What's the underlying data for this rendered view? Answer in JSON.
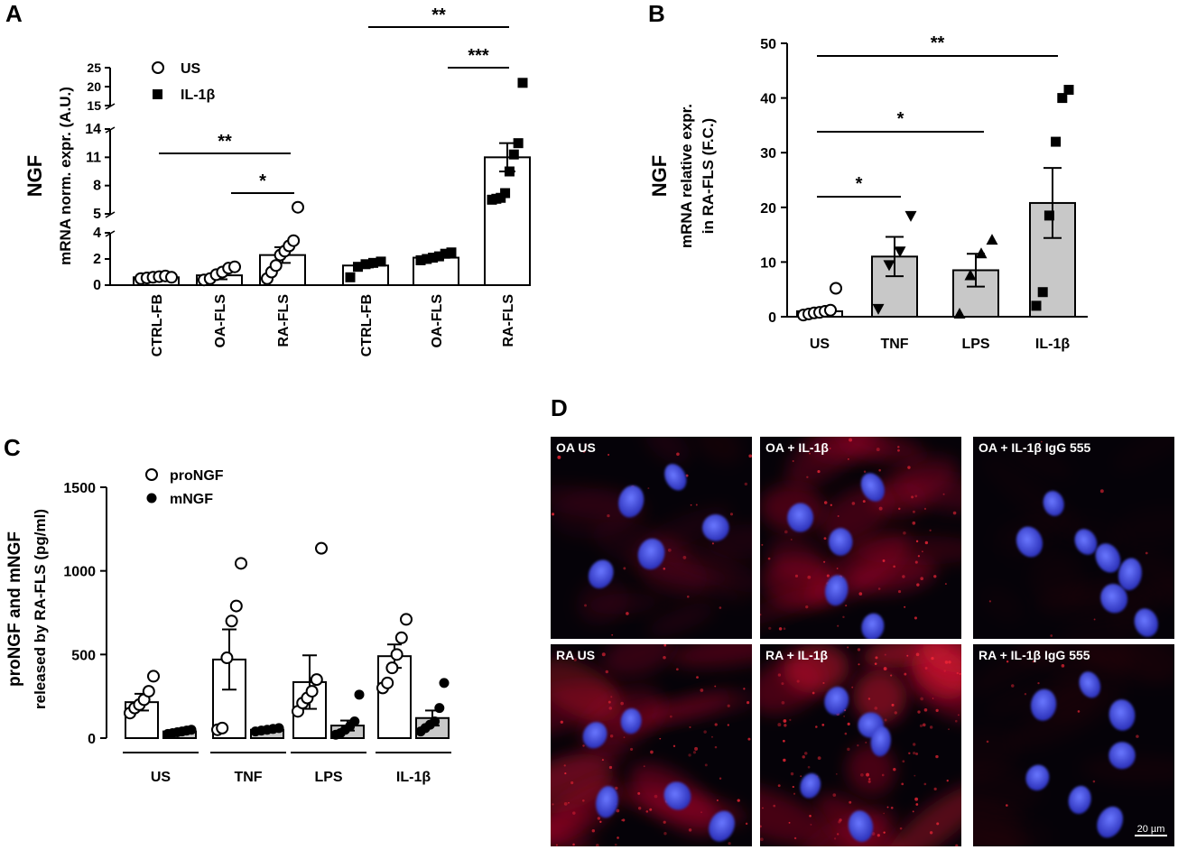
{
  "panels": [
    "A",
    "B",
    "C",
    "D"
  ],
  "chart_data": [
    {
      "id": "A",
      "type": "bar",
      "ylabel_main": "NGF",
      "ylabel_sub": "mRNA norm. expr.  (A.U.)",
      "categories": [
        "CTRL-FB",
        "OA-FLS",
        "RA-FLS",
        "CTRL-FB",
        "OA-FLS",
        "RA-FLS"
      ],
      "yaxis_segments": [
        {
          "range": [
            0,
            4
          ],
          "ticks": [
            0,
            2,
            4
          ]
        },
        {
          "range": [
            5,
            14
          ],
          "ticks": [
            5,
            8,
            11,
            14
          ]
        },
        {
          "range": [
            15,
            25
          ],
          "ticks": [
            15,
            20,
            25
          ]
        }
      ],
      "legend": [
        {
          "label": "US",
          "marker": "open-circle"
        },
        {
          "label": "IL-1β",
          "marker": "filled-square"
        }
      ],
      "legend_position": "top-left",
      "series": [
        {
          "treatment": "US",
          "category_index": 0,
          "mean": 0.6,
          "sem": 0.1,
          "points": [
            0.5,
            0.55,
            0.6,
            0.65,
            0.7,
            0.6
          ]
        },
        {
          "treatment": "US",
          "category_index": 1,
          "mean": 0.75,
          "sem": 0.3,
          "points": [
            0.4,
            0.5,
            0.8,
            1.0,
            1.3,
            1.4
          ]
        },
        {
          "treatment": "US",
          "category_index": 2,
          "mean": 2.3,
          "sem": 0.6,
          "points": [
            0.5,
            1.0,
            1.5,
            2.3,
            2.6,
            3.0,
            3.4,
            5.7
          ]
        },
        {
          "treatment": "IL-1β",
          "category_index": 3,
          "mean": 1.5,
          "sem": 0.15,
          "points": [
            0.6,
            1.4,
            1.6,
            1.7,
            1.8
          ]
        },
        {
          "treatment": "IL-1β",
          "category_index": 4,
          "mean": 2.1,
          "sem": 0.1,
          "points": [
            1.9,
            2.0,
            2.1,
            2.2,
            2.4,
            2.5
          ]
        },
        {
          "treatment": "IL-1β",
          "category_index": 5,
          "mean": 11,
          "sem": 1.5,
          "points": [
            6.5,
            6.6,
            6.7,
            7.2,
            9.5,
            11.3,
            12.5,
            21
          ]
        }
      ],
      "significance": [
        {
          "from": 0,
          "to": 2,
          "label": "**"
        },
        {
          "from": 1,
          "to": 2,
          "label": "*"
        },
        {
          "from": 3,
          "to": 5,
          "label": "**"
        },
        {
          "from": 4,
          "to": 5,
          "label": "***"
        }
      ]
    },
    {
      "id": "B",
      "type": "bar",
      "ylabel_main": "NGF",
      "ylabel_sub1": "mRNA relative expr.",
      "ylabel_sub2": "in RA-FLS (F.C.)",
      "categories": [
        "US",
        "TNF",
        "LPS",
        "IL-1β"
      ],
      "ylim": [
        0,
        50
      ],
      "yticks": [
        0,
        10,
        20,
        30,
        40,
        50
      ],
      "series": [
        {
          "category_index": 0,
          "mean": 1,
          "sem": 0.5,
          "marker": "open-circle",
          "fill": "white",
          "points": [
            0.3,
            0.5,
            0.7,
            0.8,
            1.0,
            1.2,
            5.2
          ]
        },
        {
          "category_index": 1,
          "mean": 11,
          "sem": 3.6,
          "marker": "filled-down-triangle",
          "fill": "#c8c8c8",
          "points": [
            1.5,
            9.5,
            12,
            18.5
          ]
        },
        {
          "category_index": 2,
          "mean": 8.5,
          "sem": 3,
          "marker": "filled-up-triangle",
          "fill": "#c8c8c8",
          "points": [
            0.5,
            7.5,
            11.5,
            14
          ]
        },
        {
          "category_index": 3,
          "mean": 20.8,
          "sem": 6.4,
          "marker": "filled-square",
          "fill": "#c8c8c8",
          "points": [
            2,
            4.5,
            18.5,
            32,
            40,
            41.5
          ]
        }
      ],
      "significance": [
        {
          "from": 0,
          "to": 1,
          "label": "*"
        },
        {
          "from": 0,
          "to": 2,
          "label": "*"
        },
        {
          "from": 0,
          "to": 3,
          "label": "**"
        }
      ]
    },
    {
      "id": "C",
      "type": "bar",
      "ylabel1": "proNGF and mNGF",
      "ylabel2": "released by RA-FLS  (pg/ml)",
      "categories": [
        "US",
        "TNF",
        "LPS",
        "IL-1β"
      ],
      "ylim": [
        0,
        1500
      ],
      "yticks": [
        0,
        500,
        1000,
        1500
      ],
      "legend": [
        {
          "label": "proNGF",
          "marker": "open-circle"
        },
        {
          "label": "mNGF",
          "marker": "filled-circle"
        }
      ],
      "legend_position": "top-left",
      "series": [
        {
          "name": "proNGF",
          "values": [
            215,
            470,
            335,
            490
          ],
          "sem": [
            50,
            180,
            160,
            70
          ],
          "points": [
            [
              150,
              180,
              200,
              230,
              280,
              370
            ],
            [
              50,
              60,
              480,
              700,
              790,
              1045
            ],
            [
              160,
              210,
              240,
              280,
              350,
              1135
            ],
            [
              300,
              330,
              420,
              500,
              600,
              710
            ]
          ]
        },
        {
          "name": "mNGF",
          "values": [
            40,
            50,
            75,
            120
          ],
          "sem": [
            8,
            8,
            30,
            45
          ],
          "points": [
            [
              25,
              30,
              35,
              40,
              45,
              50
            ],
            [
              40,
              45,
              50,
              55,
              60
            ],
            [
              20,
              30,
              50,
              70,
              100,
              260
            ],
            [
              40,
              60,
              80,
              100,
              180,
              330
            ]
          ]
        }
      ]
    }
  ],
  "micrographs": {
    "scale_bar": "20 µm",
    "panels": [
      {
        "label": "OA US",
        "cells": [
          [
            0.25,
            0.68
          ],
          [
            0.4,
            0.32
          ],
          [
            0.62,
            0.2
          ],
          [
            0.82,
            0.45
          ],
          [
            0.5,
            0.58
          ]
        ],
        "red_intensity": 0.18
      },
      {
        "label": "OA + IL-1β",
        "cells": [
          [
            0.2,
            0.4
          ],
          [
            0.4,
            0.52
          ],
          [
            0.56,
            0.25
          ],
          [
            0.38,
            0.76
          ],
          [
            0.56,
            0.94
          ]
        ],
        "red_intensity": 0.5
      },
      {
        "label": "OA + IL-1β IgG 555",
        "cells": [
          [
            0.28,
            0.52
          ],
          [
            0.4,
            0.33
          ],
          [
            0.56,
            0.52
          ],
          [
            0.67,
            0.6
          ],
          [
            0.78,
            0.68
          ],
          [
            0.86,
            0.92
          ],
          [
            0.7,
            0.8
          ]
        ],
        "red_intensity": 0.05
      },
      {
        "label": "RA US",
        "cells": [
          [
            0.22,
            0.45
          ],
          [
            0.4,
            0.38
          ],
          [
            0.63,
            0.75
          ],
          [
            0.28,
            0.78
          ],
          [
            0.85,
            0.9
          ]
        ],
        "red_intensity": 0.55
      },
      {
        "label": "RA + IL-1β",
        "cells": [
          [
            0.38,
            0.28
          ],
          [
            0.55,
            0.4
          ],
          [
            0.6,
            0.48
          ],
          [
            0.5,
            0.9
          ],
          [
            0.25,
            0.7
          ]
        ],
        "red_intensity": 0.85
      },
      {
        "label": "RA + IL-1β IgG 555",
        "cells": [
          [
            0.35,
            0.3
          ],
          [
            0.58,
            0.2
          ],
          [
            0.74,
            0.35
          ],
          [
            0.32,
            0.66
          ],
          [
            0.53,
            0.77
          ],
          [
            0.74,
            0.55
          ],
          [
            0.68,
            0.88
          ]
        ],
        "red_intensity": 0.08
      }
    ]
  }
}
